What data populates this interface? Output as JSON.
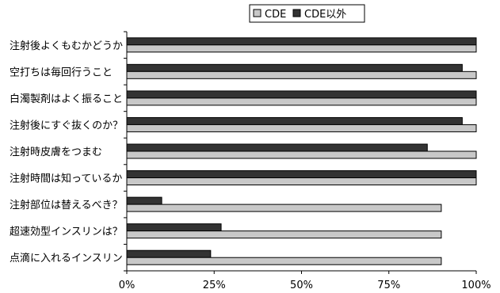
{
  "chart_data": {
    "type": "bar",
    "orientation": "horizontal",
    "categories": [
      "注射後よくもむかどうか",
      "空打ちは毎回行うこと",
      "白濁製剤はよく振ること",
      "注射後にすぐ抜くのか？",
      "注射時皮膚をつまむ",
      "注射時間は知っているか",
      "注射部位は替えるべき？",
      "超速効型インスリンは？",
      "点滴に入れるインスリン"
    ],
    "series": [
      {
        "name": "CDE",
        "color": "#c8c8c8",
        "values": [
          100,
          100,
          100,
          100,
          100,
          100,
          90,
          90,
          90
        ]
      },
      {
        "name": "CDE以外",
        "color": "#333333",
        "values": [
          100,
          96,
          100,
          96,
          86,
          100,
          10,
          27,
          24
        ]
      }
    ],
    "xlim": [
      0,
      100
    ],
    "xticks": [
      "0%",
      "25%",
      "50%",
      "75%",
      "100%"
    ],
    "grid": false,
    "legend_position": "top"
  }
}
